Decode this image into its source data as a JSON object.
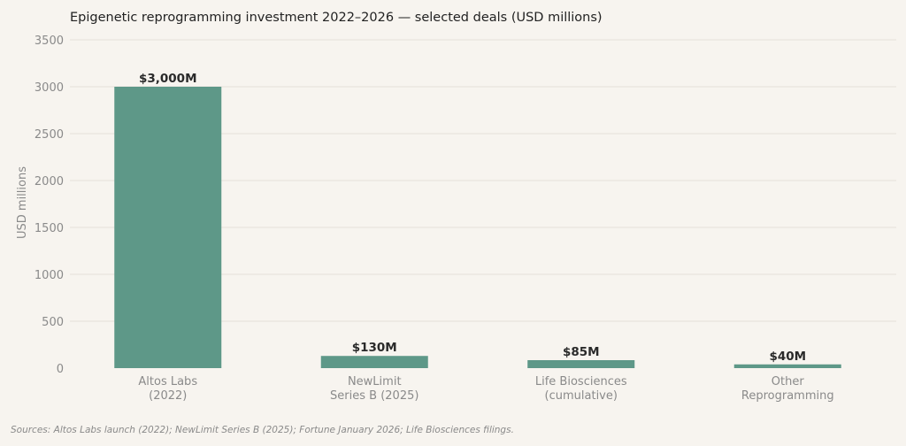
{
  "chart_data": {
    "type": "bar",
    "title": "Epigenetic reprogramming investment 2022–2026 — selected deals (USD millions)",
    "ylabel": "USD millions",
    "xlabel": "",
    "ylim": [
      0,
      3500
    ],
    "yticks": [
      0,
      500,
      1000,
      1500,
      2000,
      2500,
      3000,
      3500
    ],
    "grid": true,
    "bar_color": "#5e9888",
    "categories": [
      [
        "Altos Labs",
        "(2022)"
      ],
      [
        "NewLimit",
        "Series B (2025)"
      ],
      [
        "Life Biosciences",
        "(cumulative)"
      ],
      [
        "Other",
        "Reprogramming"
      ]
    ],
    "values": [
      3000,
      130,
      85,
      40
    ],
    "data_labels": [
      "$3,000M",
      "$130M",
      "$85M",
      "$40M"
    ]
  },
  "source_note": "Sources: Altos Labs launch (2022); NewLimit Series B (2025); Fortune January 2026; Life Biosciences filings."
}
